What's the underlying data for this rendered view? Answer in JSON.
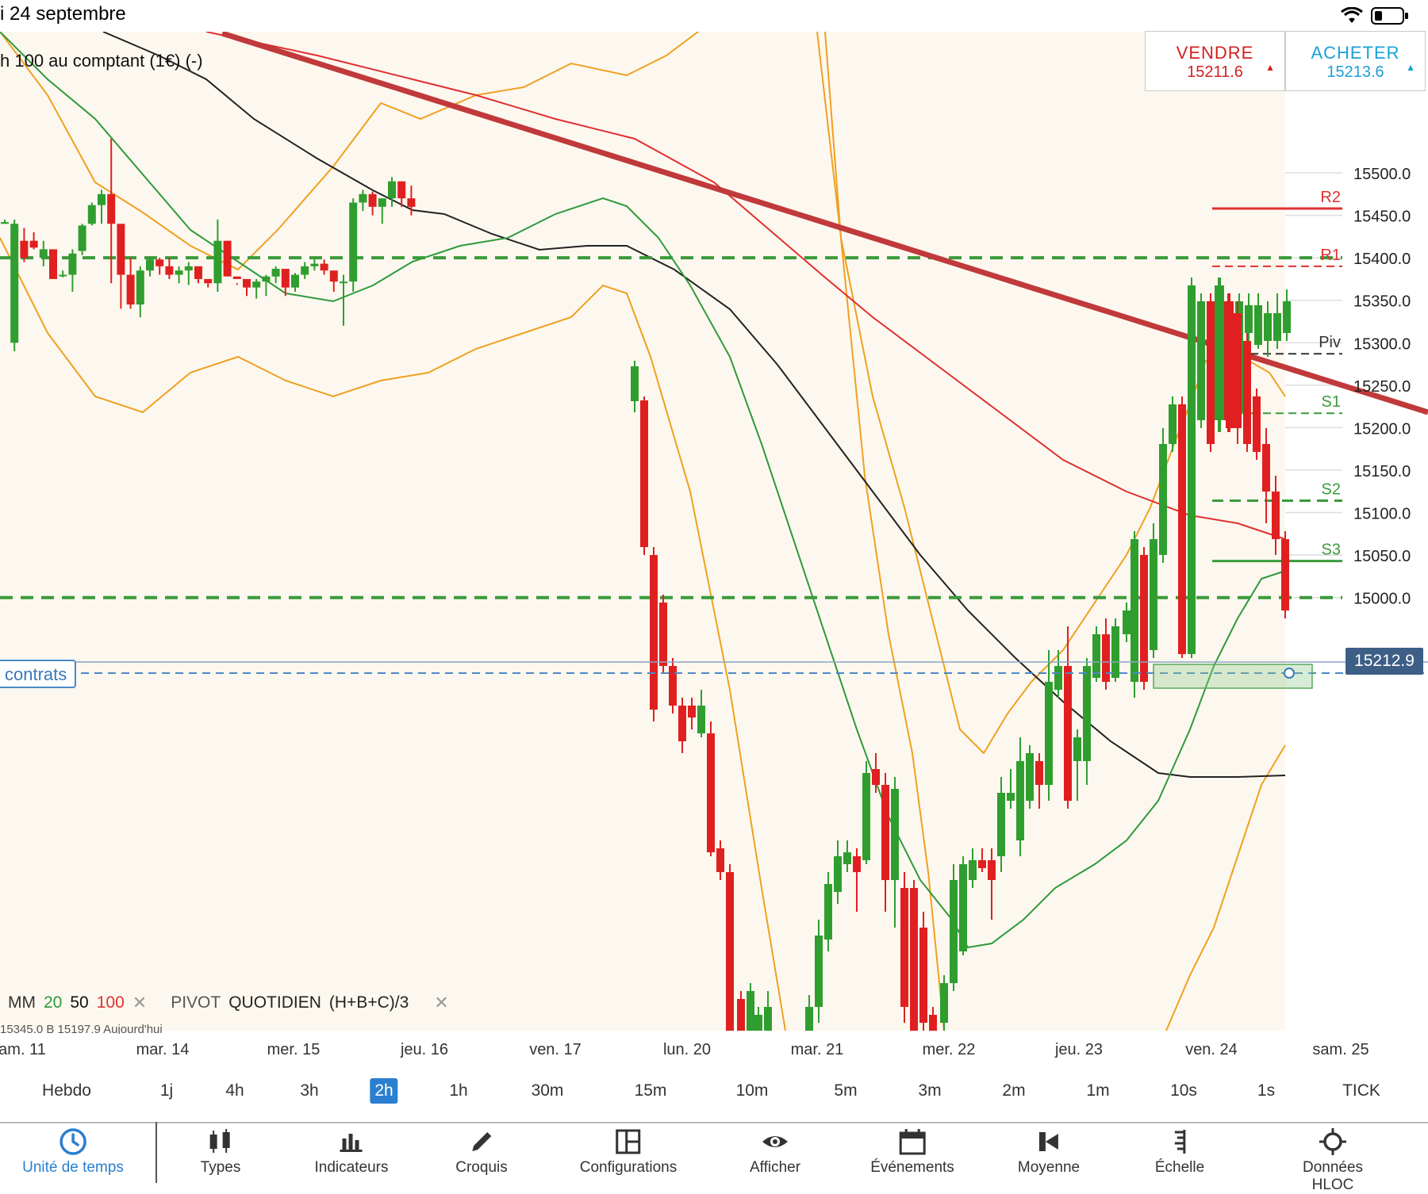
{
  "status": {
    "time": "i 24 septembre"
  },
  "instrument": "h 100 au comptant (1€) (-)",
  "trade": {
    "sell_label": "VENDRE",
    "sell_price": "15211.6",
    "buy_label": "ACHETER",
    "buy_price": "15213.6"
  },
  "contracts_label": "contrats",
  "current_price": "15212.9",
  "price_axis": [
    "15500.0",
    "15450.0",
    "15400.0",
    "15350.0",
    "15300.0",
    "15250.0",
    "15200.0",
    "15150.0",
    "15100.0",
    "15050.0",
    "15000.0"
  ],
  "date_axis": [
    "am. 11",
    "mar. 14",
    "mer. 15",
    "jeu. 16",
    "ven. 17",
    "lun. 20",
    "mar. 21",
    "mer. 22",
    "jeu. 23",
    "ven. 24",
    "sam. 25"
  ],
  "pivots": {
    "R2": "R2",
    "R1": "R1",
    "Piv": "Piv",
    "S1": "S1",
    "S2": "S2",
    "S3": "S3"
  },
  "legend": {
    "mm": "MM",
    "mm20": "20",
    "mm50": "50",
    "mm100": "100",
    "pivot": "PIVOT",
    "pivot_period": "QUOTIDIEN",
    "pivot_formula": "(H+B+C)/3",
    "close": "✕",
    "sub": "15345.0   B 15197.9   Aujourd'hui"
  },
  "timeframes": [
    "Hebdo",
    "1j",
    "4h",
    "3h",
    "2h",
    "1h",
    "30m",
    "15m",
    "10m",
    "5m",
    "3m",
    "2m",
    "1m",
    "10s",
    "1s",
    "TICK"
  ],
  "active_timeframe": "2h",
  "toolbar": [
    {
      "label": "Unité de temps",
      "icon": "clock-icon"
    },
    {
      "label": "Types",
      "icon": "candles-icon"
    },
    {
      "label": "Indicateurs",
      "icon": "bar-chart-icon"
    },
    {
      "label": "Croquis",
      "icon": "pencil-icon"
    },
    {
      "label": "Configurations",
      "icon": "layout-icon"
    },
    {
      "label": "Afficher",
      "icon": "eye-icon"
    },
    {
      "label": "Événements",
      "icon": "calendar-icon"
    },
    {
      "label": "Moyenne",
      "icon": "average-icon"
    },
    {
      "label": "Échelle",
      "icon": "scale-icon"
    },
    {
      "label": "Données HLOC",
      "icon": "crosshair-icon"
    }
  ],
  "colors": {
    "up": "#2f9e2f",
    "down": "#e02020",
    "ma20": "#2e9a3a",
    "ma50": "#222222",
    "ma100": "#e03030",
    "bollinger": "#f0a020",
    "trendline": "#c0393b",
    "accent": "#2b7fd0"
  },
  "chart_data": {
    "type": "candlestick",
    "yaxis_labels": [
      15500,
      15450,
      15400,
      15350,
      15300,
      15250,
      15200,
      15150,
      15100,
      15050,
      15000
    ],
    "trendline": [
      [
        0,
        15590
      ],
      [
        118,
        15385
      ]
    ],
    "pivot_levels": {
      "R2": 15458,
      "R1": 15390,
      "Piv": 15287,
      "S1": 15217,
      "S2": 15114,
      "S3": 15043
    },
    "support_line": 15400,
    "candles_ohlc": [
      [
        15440,
        15445,
        15440,
        15442
      ],
      [
        15300,
        15445,
        15290,
        15440
      ],
      [
        15420,
        15435,
        15395,
        15400
      ],
      [
        15420,
        15430,
        15410,
        15412
      ],
      [
        15400,
        15420,
        15390,
        15410
      ],
      [
        15410,
        15400,
        15375,
        15375
      ],
      [
        15380,
        15385,
        15377,
        15380
      ],
      [
        15380,
        15410,
        15360,
        15405
      ],
      [
        15408,
        15440,
        15403,
        15438
      ],
      [
        15440,
        15465,
        15438,
        15462
      ],
      [
        15462,
        15480,
        15440,
        15475
      ],
      [
        15475,
        15540,
        15370,
        15440
      ],
      [
        15440,
        15380,
        15340,
        15380
      ],
      [
        15380,
        15400,
        15340,
        15345
      ],
      [
        15345,
        15390,
        15330,
        15385
      ],
      [
        15385,
        15400,
        15378,
        15398
      ],
      [
        15398,
        15400,
        15380,
        15390
      ],
      [
        15390,
        15400,
        15375,
        15380
      ],
      [
        15380,
        15390,
        15370,
        15385
      ],
      [
        15385,
        15395,
        15368,
        15390
      ],
      [
        15390,
        15380,
        15370,
        15375
      ],
      [
        15375,
        15370,
        15365,
        15370
      ],
      [
        15370,
        15445,
        15360,
        15420
      ],
      [
        15420,
        15420,
        15380,
        15378
      ],
      [
        15378,
        15370,
        15368,
        15375
      ],
      [
        15375,
        15370,
        15355,
        15365
      ],
      [
        15365,
        15375,
        15352,
        15372
      ],
      [
        15372,
        15380,
        15355,
        15378
      ],
      [
        15378,
        15390,
        15370,
        15387
      ],
      [
        15387,
        15380,
        15355,
        15365
      ],
      [
        15365,
        15382,
        15360,
        15380
      ],
      [
        15380,
        15395,
        15375,
        15390
      ],
      [
        15390,
        15400,
        15385,
        15393
      ],
      [
        15393,
        15398,
        15380,
        15385
      ],
      [
        15385,
        15380,
        15360,
        15372
      ],
      [
        15372,
        15380,
        15320,
        15372
      ],
      [
        15372,
        15470,
        15360,
        15465
      ],
      [
        15465,
        15480,
        15455,
        15475
      ],
      [
        15475,
        15478,
        15450,
        15460
      ],
      [
        15460,
        15470,
        15440,
        15470
      ],
      [
        15470,
        15495,
        15460,
        15490
      ],
      [
        15490,
        15490,
        15460,
        15470
      ],
      [
        15470,
        15485,
        15450,
        15460
      ]
    ]
  }
}
